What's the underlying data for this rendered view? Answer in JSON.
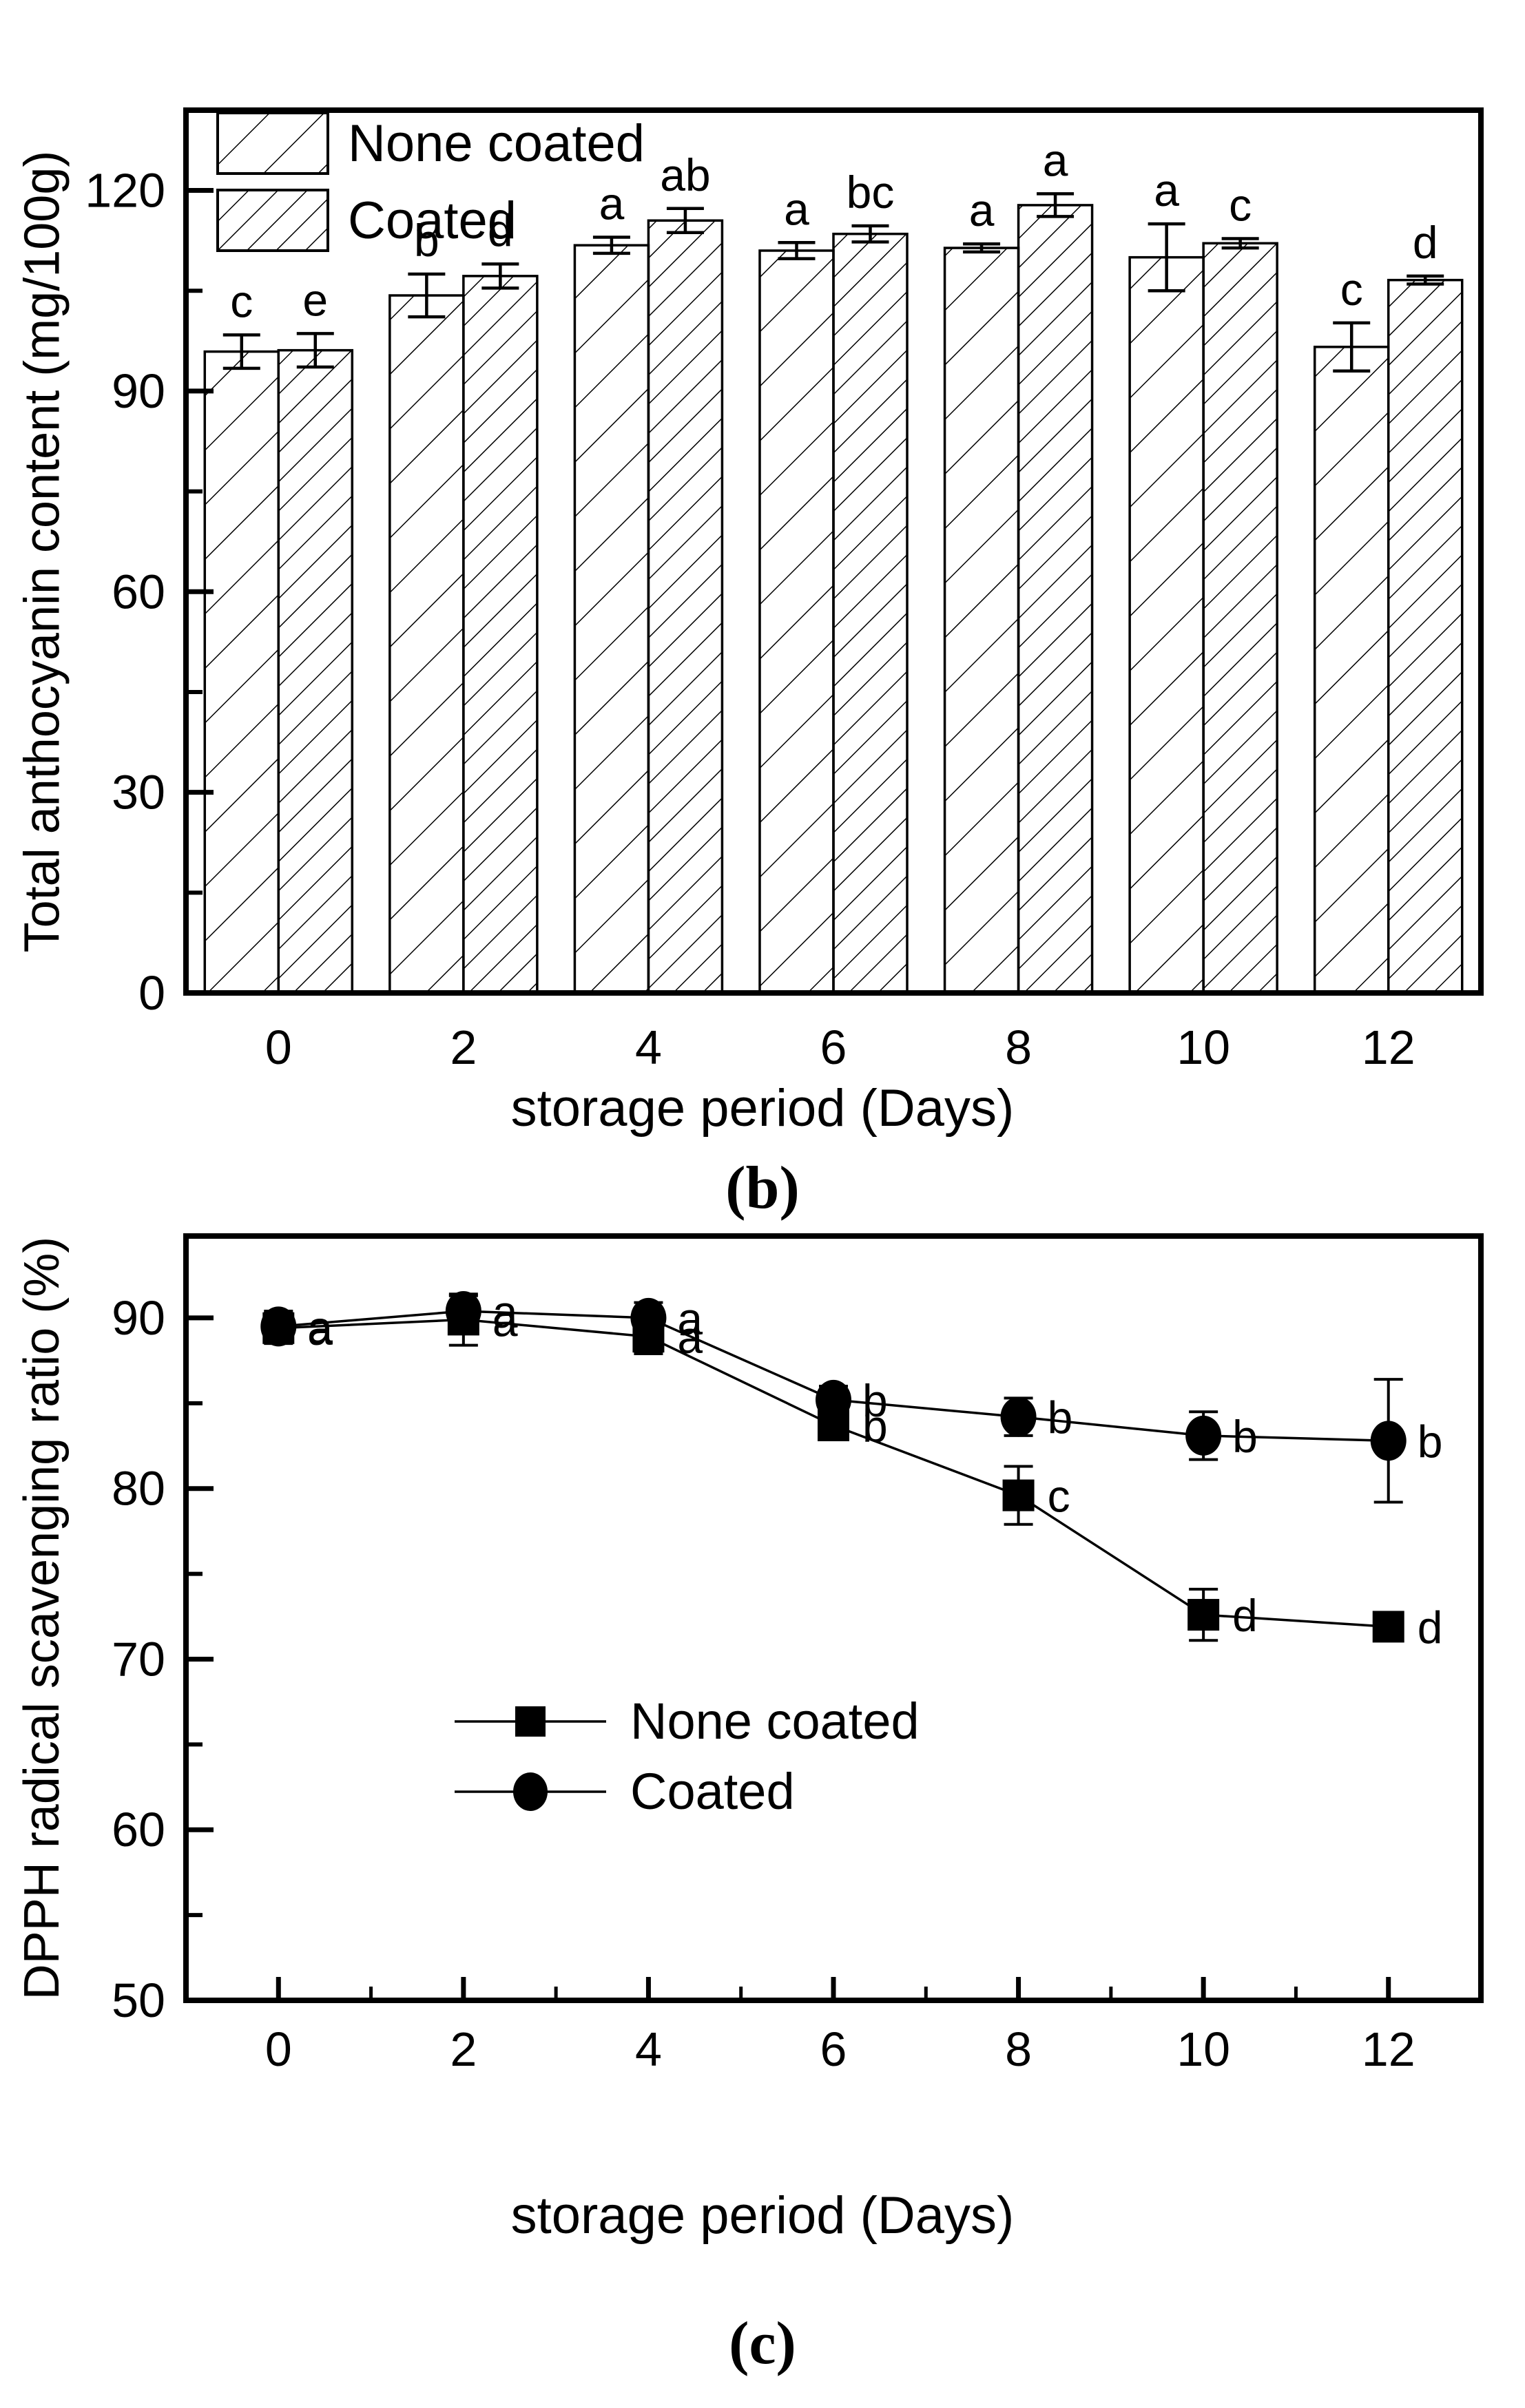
{
  "colors": {
    "foreground": "#000000",
    "background": "#ffffff"
  },
  "chart_data": [
    {
      "type": "bar",
      "panel_label": "(b)",
      "xlabel": "storage period (Days)",
      "ylabel": "Total anthocyanin content (mg/100g)",
      "categories": [
        0,
        2,
        4,
        6,
        8,
        10,
        12
      ],
      "x_tick_labels": [
        "0",
        "2",
        "4",
        "6",
        "8",
        "10",
        "12"
      ],
      "yticks": [
        0,
        30,
        60,
        90,
        120
      ],
      "y_minor_ticks": [
        15,
        45,
        75,
        105
      ],
      "ylim": [
        0,
        132
      ],
      "grid": false,
      "legend_position": "top-left-inside",
      "series": [
        {
          "name": "None coated",
          "hatch": "sparse-diagonal",
          "values": [
            95.9,
            104.3,
            111.8,
            111.0,
            111.4,
            110.0,
            96.6
          ],
          "errors": [
            2.5,
            3.2,
            1.2,
            1.2,
            0.6,
            5.0,
            3.6
          ],
          "sig_letters": [
            "c",
            "b",
            "a",
            "a",
            "a",
            "a",
            "c"
          ]
        },
        {
          "name": "Coated",
          "hatch": "dense-diagonal",
          "values": [
            96.1,
            107.2,
            115.5,
            113.5,
            117.8,
            112.1,
            106.6
          ],
          "errors": [
            2.5,
            1.8,
            1.8,
            1.2,
            1.7,
            0.7,
            0.6
          ],
          "sig_letters": [
            "e",
            "d",
            "ab",
            "bc",
            "a",
            "c",
            "d"
          ]
        }
      ]
    },
    {
      "type": "line",
      "panel_label": "(c)",
      "xlabel": "storage period (Days)",
      "ylabel": "DPPH radical scavenging ratio (%)",
      "x": [
        0,
        2,
        4,
        6,
        8,
        10,
        12
      ],
      "x_tick_labels": [
        "0",
        "2",
        "4",
        "6",
        "8",
        "10",
        "12"
      ],
      "x_minor_ticks": [
        1,
        3,
        5,
        7,
        9,
        11
      ],
      "xlim": [
        -1,
        13
      ],
      "yticks": [
        50,
        60,
        70,
        80,
        90
      ],
      "y_minor_ticks": [
        55,
        65,
        75,
        85
      ],
      "ylim": [
        50,
        94.8
      ],
      "grid": false,
      "legend_position": "center-inside",
      "series": [
        {
          "name": "None coated",
          "marker": "filled-square",
          "values": [
            89.4,
            89.9,
            88.9,
            83.7,
            79.6,
            72.6,
            71.9
          ],
          "errors": [
            0.9,
            1.5,
            1.0,
            0.6,
            1.7,
            1.5,
            0.8
          ],
          "sig_letters": [
            "a",
            "a",
            "a",
            "b",
            "c",
            "d",
            "d"
          ]
        },
        {
          "name": "Coated",
          "marker": "filled-circle",
          "values": [
            89.5,
            90.4,
            90.0,
            85.2,
            84.2,
            83.1,
            82.8
          ],
          "errors": [
            0.9,
            0.9,
            0.9,
            0.8,
            1.1,
            1.4,
            3.6
          ],
          "sig_letters": [
            "a",
            "a",
            "a",
            "b",
            "b",
            "b",
            "b"
          ]
        }
      ]
    }
  ]
}
